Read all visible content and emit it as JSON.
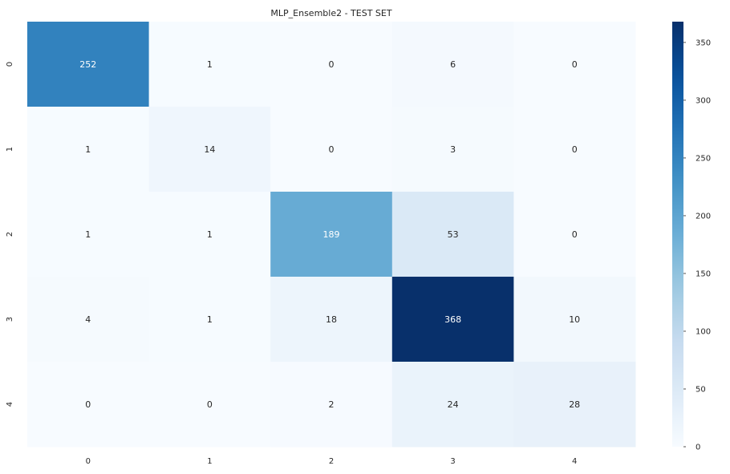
{
  "chart_data": {
    "type": "heatmap",
    "title": "MLP_Ensemble2 - TEST SET",
    "xlabel": "",
    "ylabel": "",
    "x_labels": [
      "0",
      "1",
      "2",
      "3",
      "4"
    ],
    "y_labels": [
      "0",
      "1",
      "2",
      "3",
      "4"
    ],
    "values": [
      [
        252,
        1,
        0,
        6,
        0
      ],
      [
        1,
        14,
        0,
        3,
        0
      ],
      [
        1,
        1,
        189,
        53,
        0
      ],
      [
        4,
        1,
        18,
        368,
        10
      ],
      [
        0,
        0,
        2,
        24,
        28
      ]
    ],
    "colormap": "Blues",
    "vmin": 0,
    "vmax": 368,
    "colorbar_ticks": [
      0,
      50,
      100,
      150,
      200,
      250,
      300,
      350
    ],
    "annotations": true,
    "grid": false
  }
}
